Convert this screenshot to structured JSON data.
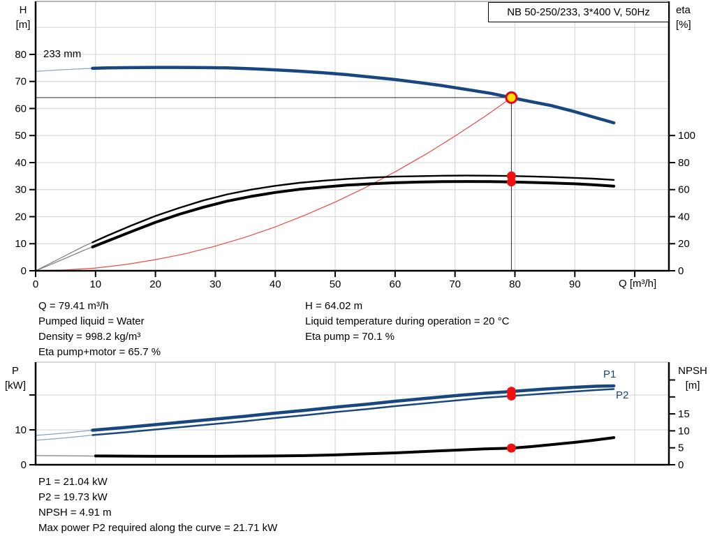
{
  "colors": {
    "curve_blue": "#17477e",
    "curve_black": "#000000",
    "system_red": "#f04a45",
    "marker_red": "#ee1111",
    "duty_yellow": "#ffdf00",
    "duty_ring": "#e8001c",
    "grid": "#d9d9d9",
    "axis": "#000000",
    "ref_line": "#2a2a2a",
    "label_blue": "#17477e",
    "top_border_1": "#9e9e9e",
    "top_border_2": "#cccccc"
  },
  "info_top_left": [
    "Q = 79.41 m³/h",
    "Pumped liquid = Water",
    "Density = 998.2 kg/m³",
    "Eta pump+motor = 65.7 %"
  ],
  "info_top_right": [
    "H = 64.02 m",
    "Liquid temperature during operation = 20 °C",
    "Eta pump = 70.1 %"
  ],
  "info_bottom": [
    "P1 = 21.04 kW",
    "P2 = 19.73 kW",
    "NPSH = 4.91 m",
    "Max power P2 required along the curve = 21.71 kW"
  ],
  "chart_data": [
    {
      "type": "line",
      "title": "NB 50-250/233, 3*400 V, 50Hz",
      "impeller_label": "233 mm",
      "x_label": "Q [m³/h]",
      "y_left_label": [
        "H",
        "[m]"
      ],
      "y_right_label": [
        "eta",
        "[%]"
      ],
      "xlim": [
        0,
        105.7
      ],
      "y_left_lim": [
        0,
        99.6
      ],
      "y_right_lim": [
        0,
        199.2
      ],
      "x_grid": [
        10,
        20,
        30,
        40,
        50,
        60,
        70,
        80,
        90,
        100
      ],
      "x_ticks": [
        {
          "v": 0,
          "label": "0"
        },
        {
          "v": 10,
          "label": "10"
        },
        {
          "v": 20,
          "label": "20"
        },
        {
          "v": 30,
          "label": "30"
        },
        {
          "v": 40,
          "label": "40"
        },
        {
          "v": 50,
          "label": "50"
        },
        {
          "v": 60,
          "label": "60"
        },
        {
          "v": 70,
          "label": "70"
        },
        {
          "v": 80,
          "label": "80"
        },
        {
          "v": 90,
          "label": "90"
        },
        {
          "v": 100,
          "label": ""
        }
      ],
      "y_grid": [
        10,
        20,
        30,
        40,
        50,
        60,
        70,
        80,
        90
      ],
      "y_left_ticks": [
        {
          "v": 0,
          "label": "0"
        },
        {
          "v": 10,
          "label": "10"
        },
        {
          "v": 20,
          "label": "20"
        },
        {
          "v": 30,
          "label": "30"
        },
        {
          "v": 40,
          "label": "40"
        },
        {
          "v": 50,
          "label": "50"
        },
        {
          "v": 60,
          "label": "60"
        },
        {
          "v": 70,
          "label": "70"
        },
        {
          "v": 80,
          "label": "80"
        }
      ],
      "y_right_ticks": [
        {
          "v": 0,
          "label": "0"
        },
        {
          "v": 20,
          "label": "20"
        },
        {
          "v": 40,
          "label": "40"
        },
        {
          "v": 60,
          "label": "60"
        },
        {
          "v": 80,
          "label": "80"
        },
        {
          "v": 100,
          "label": "100"
        }
      ],
      "ref_lines": {
        "h_y": 64.02,
        "h_x_to": 79.41,
        "v_x": 79.41,
        "v_y_to": 64.02
      },
      "duty_point": {
        "q": 79.41,
        "h": 64.02
      },
      "series": [
        {
          "name": "system-curve",
          "axis": "left",
          "color": "#f04a45",
          "width": 1.2,
          "points": [
            [
              0,
              0
            ],
            [
              5,
              0.3
            ],
            [
              10,
              1.0
            ],
            [
              15,
              2.3
            ],
            [
              20,
              4.1
            ],
            [
              25,
              6.3
            ],
            [
              30,
              9.1
            ],
            [
              35,
              12.4
            ],
            [
              40,
              16.2
            ],
            [
              45,
              20.6
            ],
            [
              50,
              25.4
            ],
            [
              55,
              30.7
            ],
            [
              60,
              36.6
            ],
            [
              65,
              42.9
            ],
            [
              70,
              49.8
            ],
            [
              75,
              57.1
            ],
            [
              79.41,
              64.0
            ]
          ]
        },
        {
          "name": "eta-pump-curve",
          "axis": "right",
          "color": "#000000",
          "width": 2.4,
          "thin_until": 9.5,
          "thin_color": "#7d7d7d",
          "points": [
            [
              0,
              0
            ],
            [
              2,
              4.5
            ],
            [
              4,
              9
            ],
            [
              6,
              13.5
            ],
            [
              8,
              18
            ],
            [
              9.5,
              21
            ],
            [
              12,
              26
            ],
            [
              16,
              33.5
            ],
            [
              20,
              40.5
            ],
            [
              24,
              46.5
            ],
            [
              28,
              52
            ],
            [
              32,
              56.5
            ],
            [
              36,
              60
            ],
            [
              40,
              62.8
            ],
            [
              44,
              65
            ],
            [
              48,
              66.6
            ],
            [
              52,
              67.9
            ],
            [
              56,
              68.9
            ],
            [
              60,
              69.6
            ],
            [
              64,
              70.0
            ],
            [
              68,
              70.3
            ],
            [
              72,
              70.4
            ],
            [
              76,
              70.3
            ],
            [
              79.41,
              70.1
            ],
            [
              83,
              69.7
            ],
            [
              86,
              69.3
            ],
            [
              90,
              68.7
            ],
            [
              93,
              68.1
            ],
            [
              96.5,
              67.2
            ]
          ]
        },
        {
          "name": "eta-pump-motor-curve",
          "axis": "right",
          "color": "#000000",
          "width": 4,
          "thin_until": 9.5,
          "thin_color": "#7d7d7d",
          "points": [
            [
              0,
              0
            ],
            [
              2,
              3.6
            ],
            [
              4,
              7.4
            ],
            [
              6,
              11.2
            ],
            [
              8,
              15
            ],
            [
              9.5,
              17.6
            ],
            [
              12,
              22
            ],
            [
              16,
              29
            ],
            [
              20,
              35.8
            ],
            [
              24,
              41.8
            ],
            [
              28,
              47
            ],
            [
              32,
              51.5
            ],
            [
              36,
              55
            ],
            [
              40,
              57.9
            ],
            [
              44,
              60.2
            ],
            [
              48,
              61.9
            ],
            [
              52,
              63.3
            ],
            [
              56,
              64.3
            ],
            [
              60,
              65.1
            ],
            [
              64,
              65.6
            ],
            [
              68,
              65.9
            ],
            [
              72,
              66.0
            ],
            [
              76,
              65.9
            ],
            [
              79.41,
              65.7
            ],
            [
              83,
              65.3
            ],
            [
              86,
              64.9
            ],
            [
              90,
              64.3
            ],
            [
              93,
              63.6
            ],
            [
              96.5,
              62.6
            ]
          ]
        },
        {
          "name": "head-curve-233mm",
          "axis": "left",
          "color": "#17477e",
          "width": 4.5,
          "thin_until": 9.5,
          "thin_color": "#8ba3bf",
          "points": [
            [
              0,
              73.7
            ],
            [
              2,
              74.0
            ],
            [
              4,
              74.3
            ],
            [
              6,
              74.5
            ],
            [
              8,
              74.7
            ],
            [
              9.5,
              74.85
            ],
            [
              12,
              75.0
            ],
            [
              16,
              75.1
            ],
            [
              20,
              75.2
            ],
            [
              24,
              75.2
            ],
            [
              28,
              75.1
            ],
            [
              32,
              75.0
            ],
            [
              36,
              74.7
            ],
            [
              40,
              74.3
            ],
            [
              44,
              73.8
            ],
            [
              48,
              73.2
            ],
            [
              52,
              72.5
            ],
            [
              56,
              71.6
            ],
            [
              60,
              70.7
            ],
            [
              64,
              69.6
            ],
            [
              68,
              68.4
            ],
            [
              72,
              67.0
            ],
            [
              76,
              65.6
            ],
            [
              79.41,
              64.0
            ],
            [
              83,
              62.4
            ],
            [
              86,
              61.1
            ],
            [
              90,
              58.8
            ],
            [
              93,
              56.9
            ],
            [
              96.5,
              54.7
            ]
          ]
        }
      ],
      "markers": [
        {
          "name": "eta-pump-operating-dot",
          "x": 79.41,
          "y": 70.1,
          "axis": "right",
          "kind": "dot",
          "r": 6.5
        },
        {
          "name": "eta-pump-motor-operating-dot",
          "x": 79.41,
          "y": 65.7,
          "axis": "right",
          "kind": "dot",
          "r": 6.5
        },
        {
          "name": "duty-point-marker",
          "x": 79.41,
          "y": 64.02,
          "axis": "left",
          "kind": "duty",
          "r": 7.5
        }
      ]
    },
    {
      "type": "line",
      "y_left_label": [
        "P",
        "[kW]"
      ],
      "y_right_label": [
        "NPSH",
        "[m]"
      ],
      "curve_labels": [
        "P1",
        "P2"
      ],
      "xlim": [
        0,
        105.7
      ],
      "y_left_lim": [
        0,
        29.4
      ],
      "y_right_lim": [
        0,
        30.25
      ],
      "x_grid": [
        10,
        20,
        30,
        40,
        50,
        60,
        70,
        80,
        90,
        100
      ],
      "x_ticks": [],
      "y_grid": [
        10,
        20
      ],
      "y_left_ticks": [
        {
          "v": 0,
          "label": "0"
        },
        {
          "v": 10,
          "label": "10"
        },
        {
          "v": 20,
          "label": ""
        }
      ],
      "y_right_ticks": [
        {
          "v": 0,
          "label": "0"
        },
        {
          "v": 5,
          "label": "5"
        },
        {
          "v": 10,
          "label": "10"
        },
        {
          "v": 15,
          "label": "15"
        },
        {
          "v": 20,
          "label": ""
        },
        {
          "v": 25,
          "label": ""
        }
      ],
      "series": [
        {
          "name": "npsh-curve",
          "axis": "right",
          "color": "#000000",
          "width": 4,
          "thin_until": 9.5,
          "thin_color": "#7d7d7d",
          "points": [
            [
              0,
              2.7
            ],
            [
              10,
              2.6
            ],
            [
              20,
              2.5
            ],
            [
              30,
              2.5
            ],
            [
              40,
              2.6
            ],
            [
              45,
              2.7
            ],
            [
              50,
              2.9
            ],
            [
              55,
              3.2
            ],
            [
              60,
              3.5
            ],
            [
              65,
              3.9
            ],
            [
              70,
              4.3
            ],
            [
              75,
              4.7
            ],
            [
              79.41,
              4.9
            ],
            [
              83,
              5.4
            ],
            [
              86,
              5.9
            ],
            [
              90,
              6.6
            ],
            [
              93,
              7.2
            ],
            [
              96.5,
              8.0
            ]
          ]
        },
        {
          "name": "p2-power-curve",
          "axis": "left",
          "color": "#17477e",
          "width": 2.4,
          "thin_until": 9.5,
          "thin_color": "#8ba3bf",
          "points": [
            [
              0,
              7.0
            ],
            [
              5,
              7.7
            ],
            [
              9.5,
              8.5
            ],
            [
              15,
              9.3
            ],
            [
              20,
              10.1
            ],
            [
              25,
              10.9
            ],
            [
              30,
              11.7
            ],
            [
              35,
              12.5
            ],
            [
              40,
              13.4
            ],
            [
              45,
              14.2
            ],
            [
              50,
              15.1
            ],
            [
              55,
              15.9
            ],
            [
              60,
              16.8
            ],
            [
              65,
              17.6
            ],
            [
              70,
              18.4
            ],
            [
              75,
              19.2
            ],
            [
              79.41,
              19.7
            ],
            [
              85,
              20.4
            ],
            [
              90,
              21.0
            ],
            [
              93.5,
              21.4
            ],
            [
              96.5,
              21.7
            ]
          ]
        },
        {
          "name": "p1-power-curve",
          "axis": "left",
          "color": "#17477e",
          "width": 4.5,
          "thin_until": 9.5,
          "thin_color": "#8ba3bf",
          "points": [
            [
              0,
              8.4
            ],
            [
              5,
              9.1
            ],
            [
              9.5,
              9.9
            ],
            [
              15,
              10.7
            ],
            [
              20,
              11.5
            ],
            [
              25,
              12.3
            ],
            [
              30,
              13.1
            ],
            [
              35,
              13.9
            ],
            [
              40,
              14.8
            ],
            [
              45,
              15.6
            ],
            [
              50,
              16.5
            ],
            [
              55,
              17.3
            ],
            [
              60,
              18.2
            ],
            [
              65,
              19.0
            ],
            [
              70,
              19.8
            ],
            [
              75,
              20.5
            ],
            [
              79.41,
              21.0
            ],
            [
              85,
              21.7
            ],
            [
              90,
              22.2
            ],
            [
              93.5,
              22.5
            ],
            [
              96.5,
              22.6
            ]
          ]
        }
      ],
      "markers": [
        {
          "name": "p1-operating-dot",
          "x": 79.41,
          "y": 21.04,
          "axis": "left",
          "kind": "dot",
          "r": 6.5
        },
        {
          "name": "p2-operating-dot",
          "x": 79.41,
          "y": 19.73,
          "axis": "left",
          "kind": "dot",
          "r": 6.5
        },
        {
          "name": "npsh-operating-dot",
          "x": 79.41,
          "y": 4.91,
          "axis": "right",
          "kind": "dot",
          "r": 6.5
        }
      ]
    }
  ]
}
